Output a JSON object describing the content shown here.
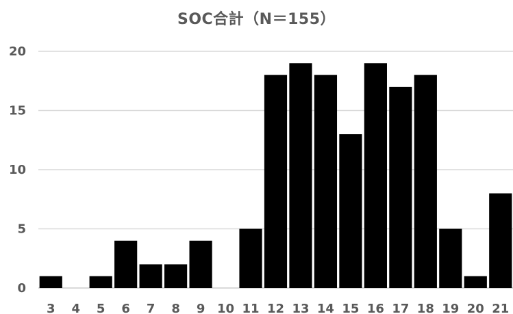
{
  "chart_data": {
    "type": "bar",
    "title": "SOC合計（N＝155）",
    "xlabel": "",
    "ylabel": "",
    "categories": [
      "3",
      "4",
      "5",
      "6",
      "7",
      "8",
      "9",
      "10",
      "11",
      "12",
      "13",
      "14",
      "15",
      "16",
      "17",
      "18",
      "19",
      "20",
      "21"
    ],
    "values": [
      1,
      0,
      1,
      4,
      2,
      2,
      4,
      0,
      5,
      18,
      19,
      18,
      13,
      19,
      17,
      18,
      5,
      1,
      8
    ],
    "ylim": [
      0,
      20
    ],
    "yticks": [
      "0",
      "5",
      "10",
      "15",
      "20"
    ],
    "grid": true,
    "legend": "none",
    "colors": {
      "bar": "#000000",
      "grid": "#d9d9d9",
      "text": "#595959"
    }
  }
}
